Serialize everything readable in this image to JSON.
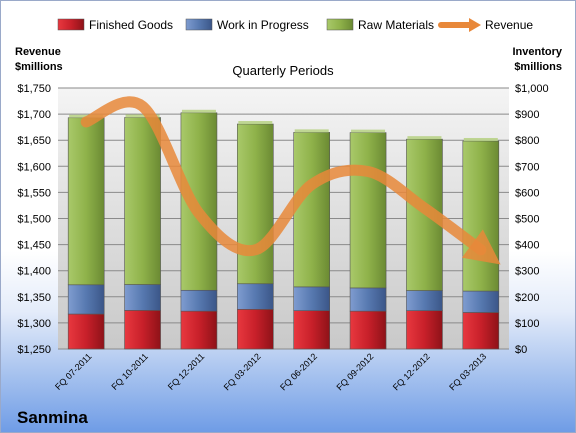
{
  "company": "Sanmina",
  "chart_data": {
    "type": "bar",
    "stacked": true,
    "title": "Quarterly Periods",
    "categories": [
      "FQ 07-2011",
      "FQ 10-2011",
      "FQ 12-2011",
      "FQ 03-2012",
      "FQ 06-2012",
      "FQ 09-2012",
      "FQ 12-2012",
      "FQ 03-2013"
    ],
    "left_axis": {
      "label_lines": [
        "Revenue",
        "$millions"
      ],
      "range": [
        1250,
        1750
      ],
      "step": 50,
      "prefix": "$"
    },
    "right_axis": {
      "label_lines": [
        "Inventory",
        "$millions"
      ],
      "range": [
        0,
        1000
      ],
      "step": 100,
      "prefix": "$"
    },
    "series": [
      {
        "name": "Finished Goods",
        "axis": "right",
        "color": "#c8202a",
        "values": [
          134,
          148,
          145,
          152,
          147,
          145,
          147,
          140
        ]
      },
      {
        "name": "Work in Progress",
        "axis": "right",
        "color": "#5779b0",
        "values": [
          112,
          99,
          80,
          98,
          91,
          89,
          77,
          82
        ]
      },
      {
        "name": "Raw Materials",
        "axis": "right",
        "color": "#8fb24a",
        "values": [
          640,
          640,
          680,
          612,
          592,
          595,
          580,
          575
        ]
      },
      {
        "name": "Revenue",
        "axis": "left",
        "type": "line",
        "color": "#e8883a",
        "values": [
          1685,
          1715,
          1510,
          1440,
          1565,
          1590,
          1520,
          1440
        ]
      }
    ],
    "legend_position": "top",
    "grid": true
  }
}
